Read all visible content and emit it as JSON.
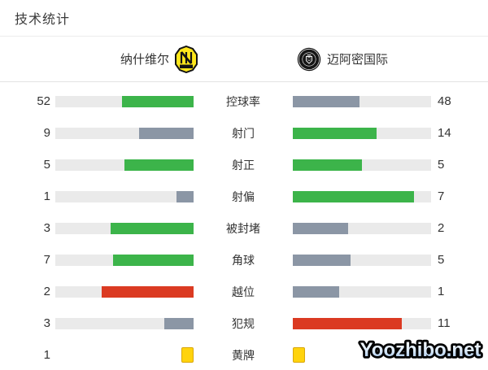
{
  "title": "技术统计",
  "header": {
    "home_team": "纳什维尔",
    "away_team": "迈阿密国际",
    "home_logo": "nashville-sc-badge",
    "away_logo": "inter-miami-crest"
  },
  "colors": {
    "green": "#3cb44a",
    "gray": "#8b96a5",
    "red": "#db3a22",
    "track": "#eaeaea",
    "yellow_card_fill": "#ffd30d",
    "yellow_card_border": "#d9a70b",
    "text": "#333333",
    "nashville_yellow": "#ffe71c",
    "miami_black": "#161616"
  },
  "stats": [
    {
      "label": "控球率",
      "home": 52,
      "away": 48,
      "home_color": "green",
      "away_color": "gray",
      "type": "bar"
    },
    {
      "label": "射门",
      "home": 9,
      "away": 14,
      "home_color": "gray",
      "away_color": "green",
      "type": "bar"
    },
    {
      "label": "射正",
      "home": 5,
      "away": 5,
      "home_color": "green",
      "away_color": "green",
      "type": "bar"
    },
    {
      "label": "射偏",
      "home": 1,
      "away": 7,
      "home_color": "gray",
      "away_color": "green",
      "type": "bar"
    },
    {
      "label": "被封堵",
      "home": 3,
      "away": 2,
      "home_color": "green",
      "away_color": "gray",
      "type": "bar"
    },
    {
      "label": "角球",
      "home": 7,
      "away": 5,
      "home_color": "green",
      "away_color": "gray",
      "type": "bar"
    },
    {
      "label": "越位",
      "home": 2,
      "away": 1,
      "home_color": "red",
      "away_color": "gray",
      "type": "bar"
    },
    {
      "label": "犯规",
      "home": 3,
      "away": 11,
      "home_color": "gray",
      "away_color": "red",
      "type": "bar"
    },
    {
      "label": "黄牌",
      "home": 1,
      "away": 1,
      "home_color": "yellow_card_fill",
      "away_color": "yellow_card_fill",
      "type": "card"
    }
  ],
  "chart_data": {
    "type": "bar",
    "title": "技术统计",
    "orientation": "horizontal-opposed",
    "categories": [
      "控球率",
      "射门",
      "射正",
      "射偏",
      "被封堵",
      "角球",
      "越位",
      "犯规",
      "黄牌"
    ],
    "series": [
      {
        "name": "纳什维尔",
        "values": [
          52,
          9,
          5,
          1,
          3,
          7,
          2,
          3,
          1
        ]
      },
      {
        "name": "迈阿密国际",
        "values": [
          48,
          14,
          5,
          7,
          2,
          5,
          1,
          11,
          1
        ]
      }
    ],
    "note": "bar fill fraction = value / (home + away); green = better, gray = worse, red = negative stat leader, yellow squares = yellow cards"
  },
  "watermark": "Yoozhibo.net"
}
